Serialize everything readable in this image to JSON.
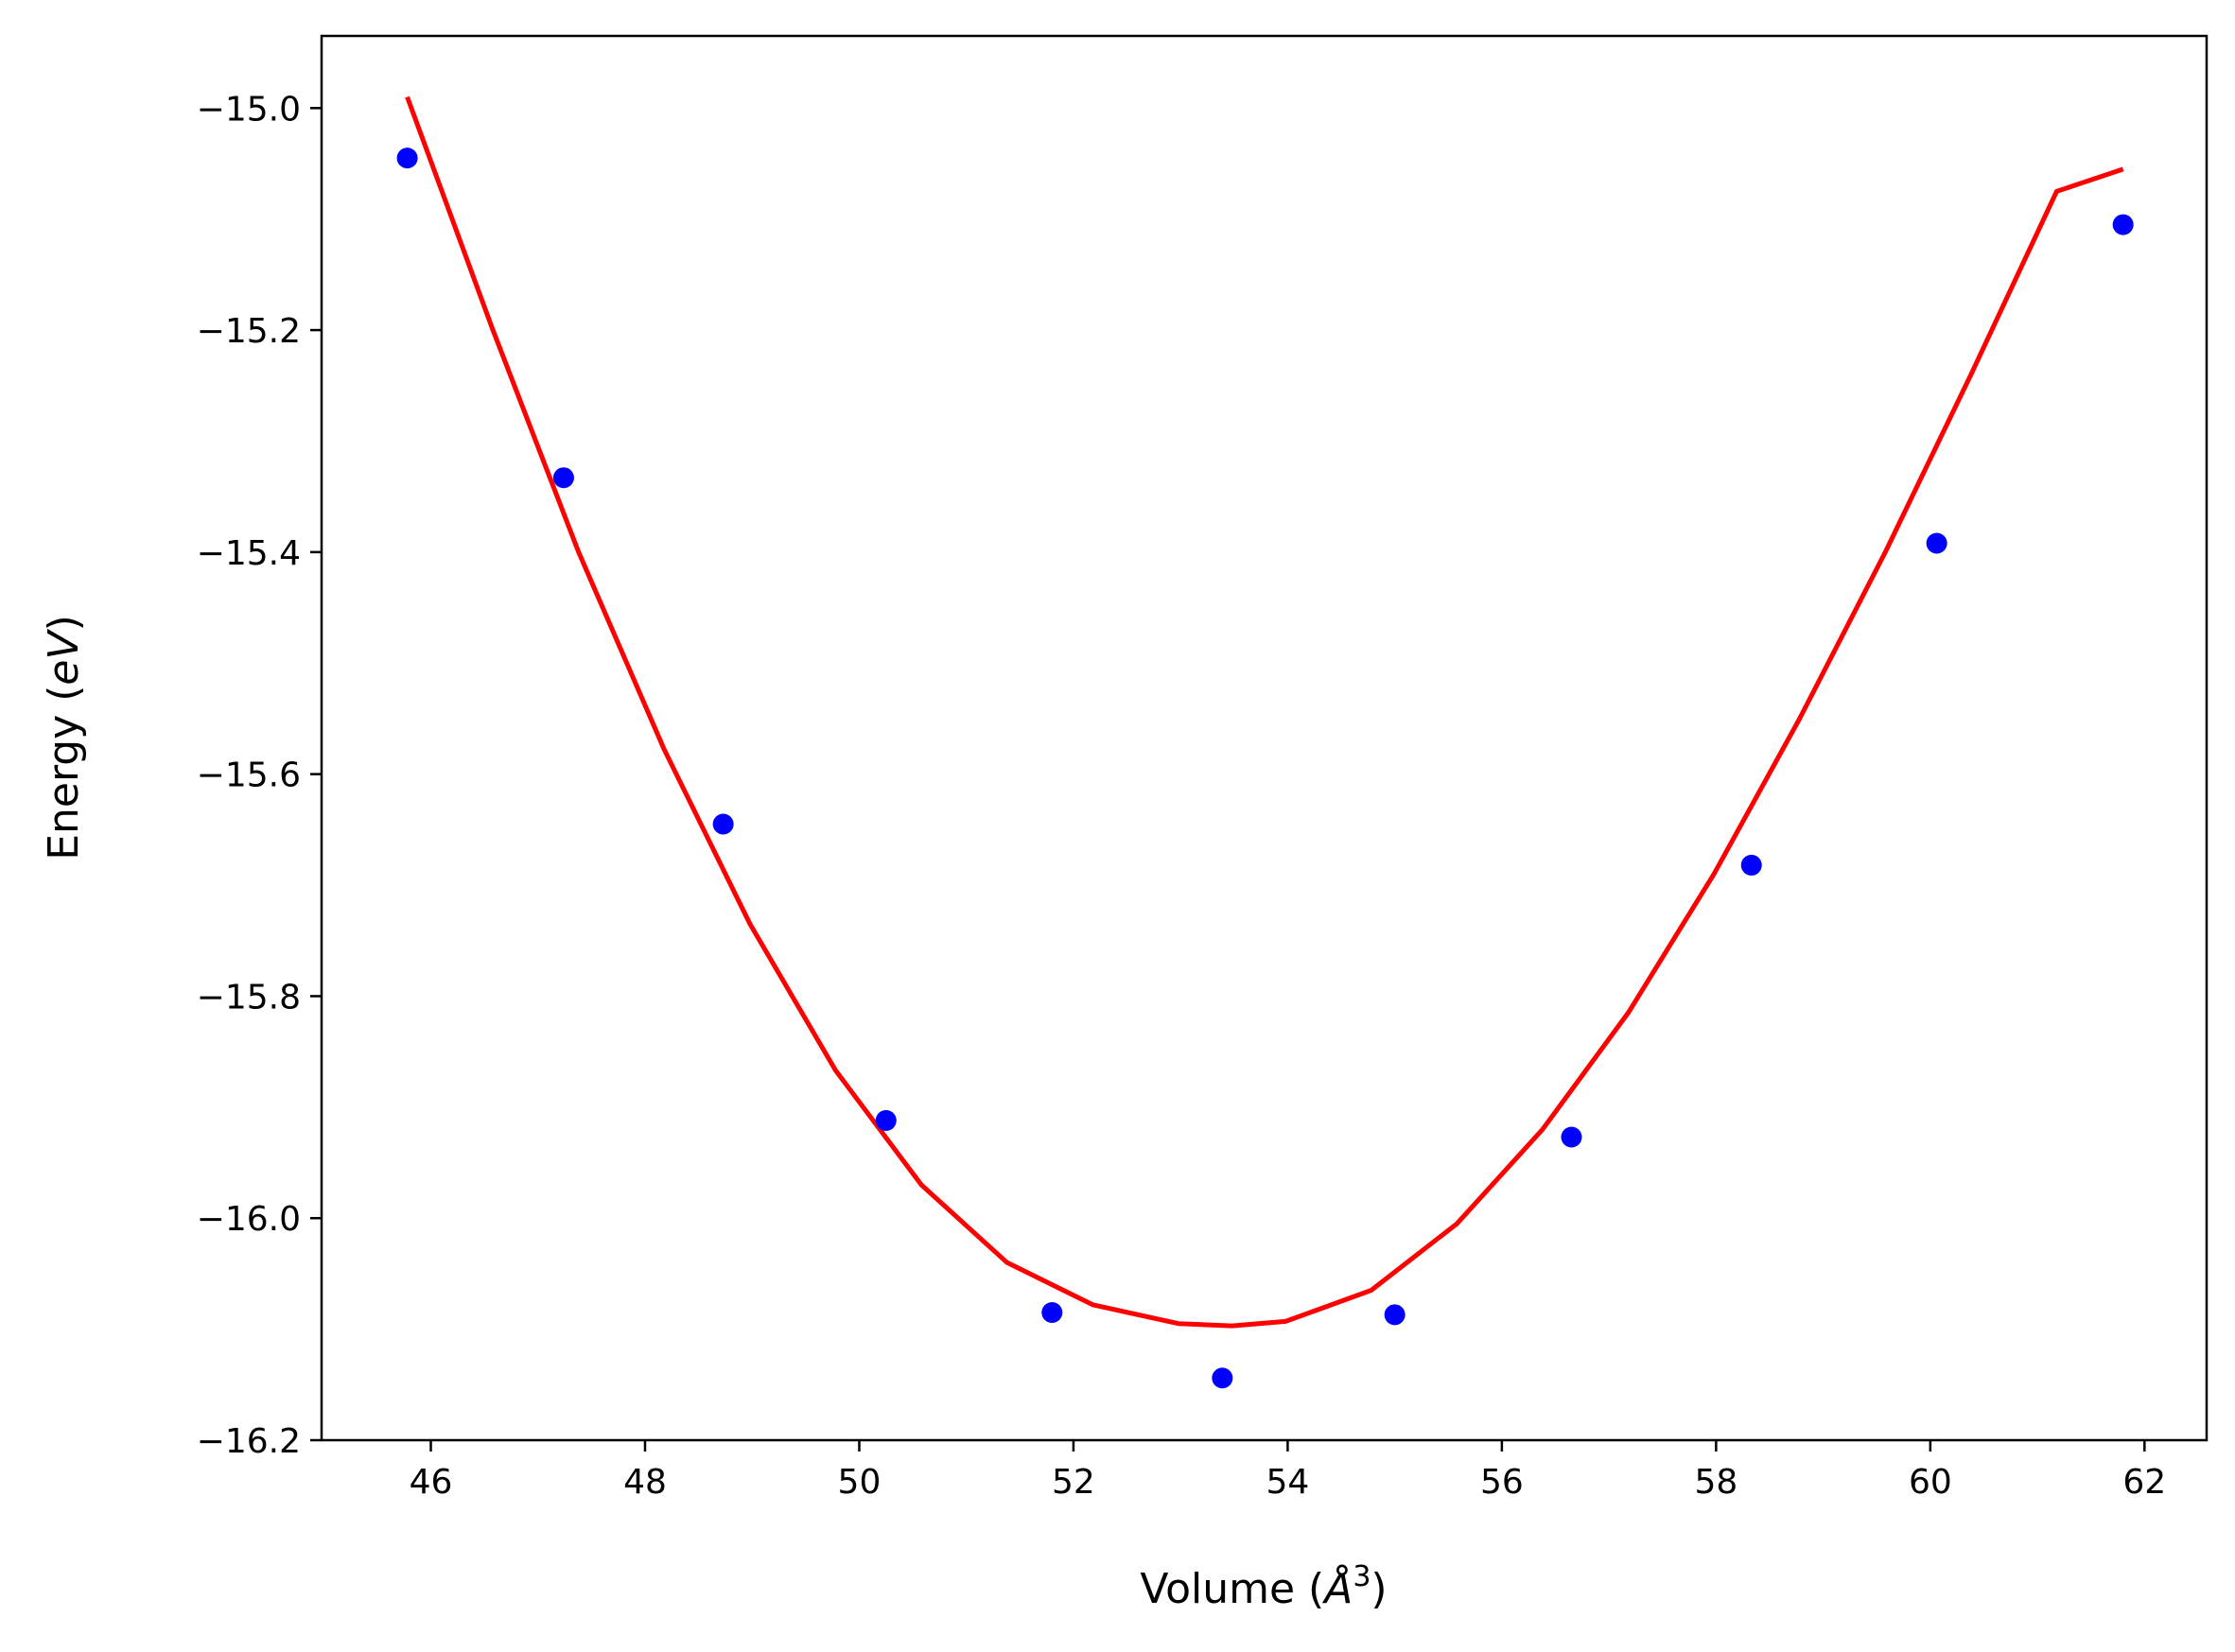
{
  "chart_data": {
    "type": "scatter",
    "title": "",
    "xlabel": {
      "main": "Volume (",
      "unit_base": "Å",
      "unit_sup": "3",
      "close": ")"
    },
    "ylabel": {
      "main": "Energy (",
      "unit": "eV",
      "close": ")"
    },
    "xlim": [
      44.98,
      62.58
    ],
    "ylim": [
      -16.2,
      -14.935
    ],
    "xticks": [
      46,
      48,
      50,
      52,
      54,
      56,
      58,
      60,
      62
    ],
    "yticks": [
      -16.2,
      -16.0,
      -15.8,
      -15.6,
      -15.4,
      -15.2,
      -15.0
    ],
    "xtick_labels": [
      "46",
      "48",
      "50",
      "52",
      "54",
      "56",
      "58",
      "60",
      "62"
    ],
    "ytick_labels": [
      "−16.2",
      "−16.0",
      "−15.8",
      "−15.6",
      "−15.4",
      "−15.2",
      "−15.0"
    ],
    "grid": false,
    "legend": "none",
    "series": [
      {
        "kind": "points",
        "color": "#0000ff",
        "x": [
          45.78,
          47.24,
          48.73,
          50.25,
          51.8,
          53.39,
          55.0,
          56.65,
          58.33,
          60.06,
          61.8
        ],
        "y": [
          -15.045,
          -15.333,
          -15.645,
          -15.912,
          -16.085,
          -16.144,
          -16.087,
          -15.927,
          -15.682,
          -15.392,
          -15.105
        ]
      },
      {
        "kind": "line",
        "color": "#ff0000",
        "x": [
          45.78,
          46.58,
          47.38,
          48.18,
          48.98,
          49.78,
          50.58,
          51.38,
          52.18,
          52.98,
          53.48,
          53.98,
          54.78,
          55.58,
          56.38,
          57.18,
          57.98,
          58.78,
          59.58,
          60.38,
          61.18,
          61.8
        ],
        "y": [
          -14.99,
          -15.2,
          -15.4,
          -15.578,
          -15.735,
          -15.867,
          -15.97,
          -16.04,
          -16.078,
          -16.095,
          -16.097,
          -16.093,
          -16.065,
          -16.005,
          -15.92,
          -15.815,
          -15.69,
          -15.55,
          -15.4,
          -15.24,
          -15.075,
          -15.055
        ]
      }
    ]
  }
}
